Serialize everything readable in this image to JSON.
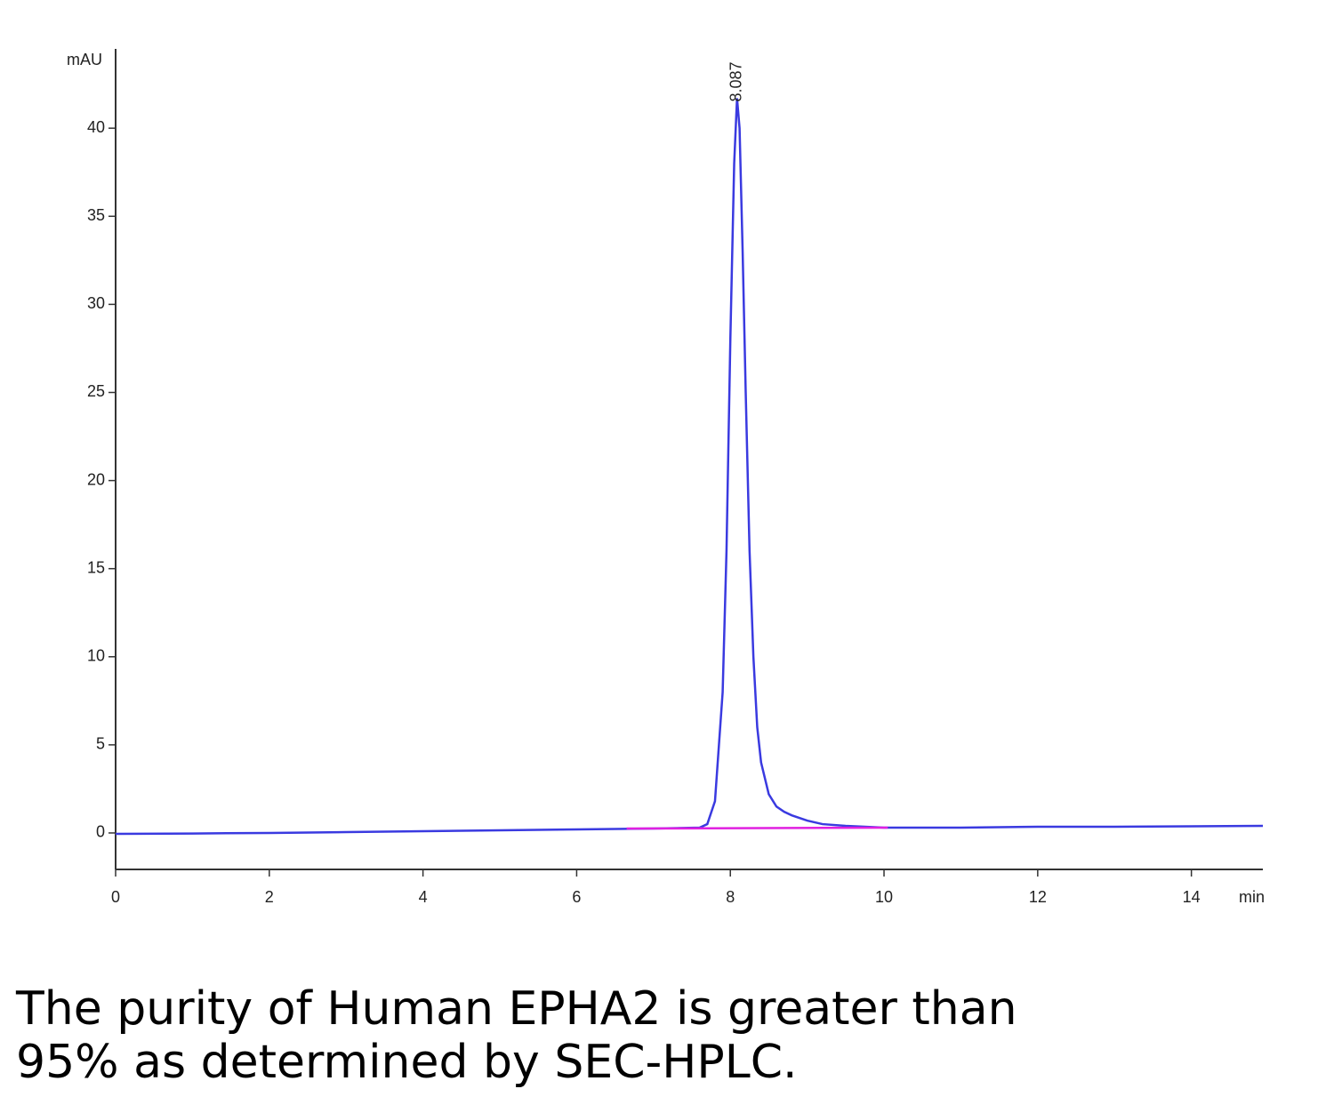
{
  "chart_data": {
    "type": "line",
    "y_label": "mAU",
    "x_label": "min",
    "xlim": [
      0,
      14.93
    ],
    "ylim": [
      -2.07,
      44.5
    ],
    "xticks": [
      0,
      2,
      4,
      6,
      8,
      10,
      12,
      14
    ],
    "yticks": [
      0,
      5,
      10,
      15,
      20,
      25,
      30,
      35,
      40
    ],
    "series": [
      {
        "color": "#3a3ae0",
        "x": [
          0,
          1,
          2,
          3,
          4,
          5,
          6,
          7,
          7.6,
          7.7,
          7.8,
          7.9,
          7.95,
          8.0,
          8.05,
          8.087,
          8.12,
          8.16,
          8.2,
          8.25,
          8.3,
          8.35,
          8.4,
          8.5,
          8.6,
          8.7,
          8.8,
          9.0,
          9.2,
          9.5,
          10,
          11,
          12,
          13,
          14,
          14.93
        ],
        "values": [
          -0.05,
          -0.03,
          0.0,
          0.05,
          0.1,
          0.15,
          0.2,
          0.25,
          0.3,
          0.5,
          1.8,
          8,
          16,
          28,
          38,
          41.7,
          40,
          33,
          25,
          16,
          10,
          6,
          4,
          2.2,
          1.5,
          1.2,
          1.0,
          0.7,
          0.5,
          0.4,
          0.3,
          0.3,
          0.35,
          0.35,
          0.38,
          0.4
        ]
      },
      {
        "color": "#e020e0",
        "x": [
          6.65,
          10.05
        ],
        "values": [
          0.25,
          0.3
        ]
      }
    ],
    "annotations": [
      {
        "text": "8.087",
        "x": 8.087,
        "y": 41.7
      }
    ],
    "caption_lines": [
      "The purity of Human EPHA2 is greater than",
      "95% as determined by SEC-HPLC."
    ]
  }
}
